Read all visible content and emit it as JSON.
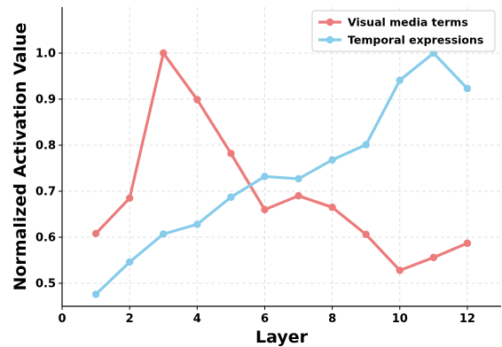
{
  "chart_data": {
    "type": "line",
    "title": "",
    "xlabel": "Layer",
    "ylabel": "Normalized Activation Value",
    "xlim": [
      0,
      13
    ],
    "ylim": [
      0.45,
      1.1
    ],
    "xticks": [
      0,
      2,
      4,
      6,
      8,
      10,
      12
    ],
    "yticks": [
      0.5,
      0.6,
      0.7,
      0.8,
      0.9,
      1.0
    ],
    "grid": true,
    "legend_position": "top-right",
    "x": [
      1,
      2,
      3,
      4,
      5,
      6,
      7,
      8,
      9,
      10,
      11,
      12
    ],
    "series": [
      {
        "name": "Visual media terms",
        "color": "#EC7B7B",
        "values": [
          0.608,
          0.685,
          1.0,
          0.899,
          0.782,
          0.66,
          0.69,
          0.665,
          0.606,
          0.528,
          0.556,
          0.587
        ]
      },
      {
        "name": "Temporal expressions",
        "color": "#87CCEA",
        "values": [
          0.476,
          0.546,
          0.607,
          0.628,
          0.687,
          0.732,
          0.727,
          0.768,
          0.801,
          0.941,
          1.0,
          0.923
        ]
      }
    ]
  }
}
